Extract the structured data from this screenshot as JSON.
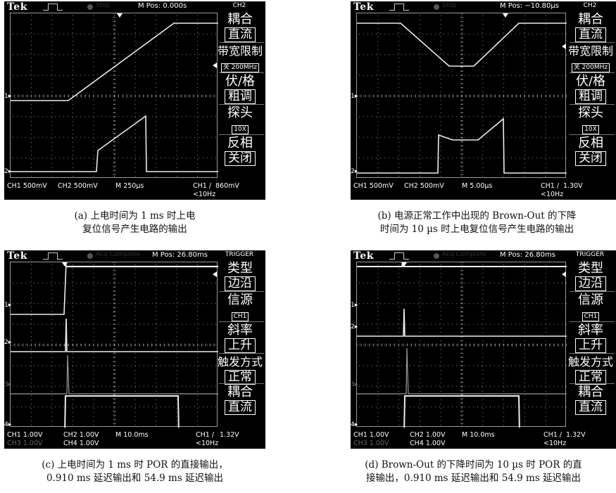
{
  "panels": [
    {
      "id": "a",
      "brand": "Tek",
      "mpos": "M Pos: 0.000s",
      "menu_title": "CH2",
      "ghost": [
        "Stop"
      ],
      "menu": [
        {
          "label": "耦合",
          "value": "直流",
          "style": "box"
        },
        {
          "label": "带宽限制",
          "value": "关 200MHz",
          "style": "small"
        },
        {
          "label": "伏/格",
          "value": "粗调",
          "style": "box"
        },
        {
          "label": "探头",
          "value": "10X",
          "style": "small"
        },
        {
          "label": "反相",
          "value": "关闭",
          "style": "box"
        }
      ],
      "status_line1": [
        "CH1 500mV",
        "CH2 500mV",
        "M 250µs",
        "CH1 /",
        "860mV"
      ],
      "status_line2": [
        "",
        "",
        "",
        "<10Hz",
        ""
      ],
      "ch_markers": [
        "1▸",
        "2▸"
      ],
      "caption": [
        "(a) 上电时间为 1 ms 时上电",
        "复位信号产生电路的输出"
      ]
    },
    {
      "id": "b",
      "brand": "Tek",
      "mpos": "M Pos: −10.80µs",
      "menu_title": "CH2",
      "ghost": [
        "Stop"
      ],
      "menu": [
        {
          "label": "耦合",
          "value": "直流",
          "style": "box"
        },
        {
          "label": "带宽限制",
          "value": "关 200MHz",
          "style": "small"
        },
        {
          "label": "伏/格",
          "value": "粗调",
          "style": "box"
        },
        {
          "label": "探头",
          "value": "10X",
          "style": "small"
        },
        {
          "label": "反相",
          "value": "关闭",
          "style": "box"
        }
      ],
      "status_line1": [
        "CH1 500mV",
        "CH2 500mV",
        "M 5.00µs",
        "CH1 /",
        "1.30V"
      ],
      "status_line2": [
        "",
        "",
        "",
        "<10Hz",
        ""
      ],
      "ch_markers": [
        "1▸",
        "2▸"
      ],
      "caption": [
        "(b) 电源正常工作中出现的 Brown-Out 的下降",
        "时间为 10 µs 时上电复位信号产生电路的输出"
      ]
    },
    {
      "id": "c",
      "brand": "Tek",
      "mpos": "M Pos: 26.80ms",
      "menu_title": "TRIGGER",
      "ghost": [
        "Acq Complete"
      ],
      "menu": [
        {
          "label": "类型",
          "value": "边沿",
          "style": "box"
        },
        {
          "label": "信源",
          "value": "CH1",
          "style": "small"
        },
        {
          "label": "斜率",
          "value": "上升",
          "style": "box"
        },
        {
          "label": "触发方式",
          "value": "正常",
          "style": "box"
        },
        {
          "label": "耦合",
          "value": "直流",
          "style": "box"
        }
      ],
      "status_line1": [
        "CH1 1.00V",
        "CH2 1.00V",
        "M 10.0ms",
        "CH1 /",
        "1.32V"
      ],
      "status_line2": [
        "CH3 1.00V",
        "CH4 1.00V",
        "",
        "<10Hz",
        ""
      ],
      "ch_markers": [
        "1▸",
        "2▸",
        "3▸",
        "4▸"
      ],
      "caption": [
        "(c) 上电时间为 1 ms 时 POR 的直接输出，",
        "0.910 ms 延迟输出和 54.9 ms 延迟输出"
      ]
    },
    {
      "id": "d",
      "brand": "Tek",
      "mpos": "M Pos: 26.80ms",
      "menu_title": "TRIGGER",
      "ghost": [
        "Acq Complete"
      ],
      "menu": [
        {
          "label": "类型",
          "value": "边沿",
          "style": "box"
        },
        {
          "label": "信源",
          "value": "CH1",
          "style": "small"
        },
        {
          "label": "斜率",
          "value": "上升",
          "style": "box"
        },
        {
          "label": "触发方式",
          "value": "正常",
          "style": "box"
        },
        {
          "label": "耦合",
          "value": "直流",
          "style": "box"
        }
      ],
      "status_line1": [
        "CH1 1.00V",
        "CH2 1.00V",
        "M 10.0ms",
        "CH1 /",
        "1.32V"
      ],
      "status_line2": [
        "CH3 1.00V",
        "CH4 1.00V",
        "",
        "<10Hz",
        ""
      ],
      "ch_markers": [
        "1▸",
        "2▸",
        "3▸",
        "4▸"
      ],
      "caption": [
        "(d) Brown-Out 的下降时间为 10 µs 时 POR 的直",
        "接输出，0.910 ms 延迟输出和 54.9 ms 延迟输出"
      ]
    }
  ],
  "colors": {
    "screen": "#000000",
    "trace": "#e8e8e8",
    "grid": "#9a9a9a"
  }
}
